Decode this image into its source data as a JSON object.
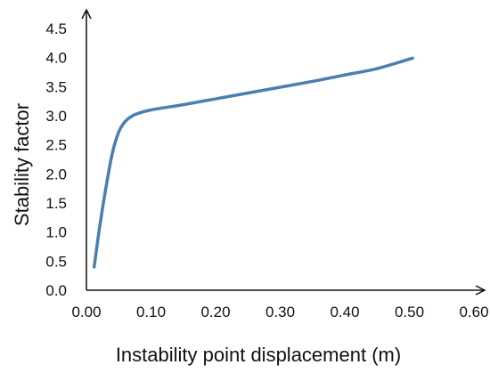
{
  "chart_data": {
    "type": "line",
    "title": "",
    "xlabel": "Instability point displacement (m)",
    "ylabel": "Stability factor",
    "xlim": [
      0,
      0.6
    ],
    "ylim": [
      0,
      4.5
    ],
    "x_ticks": [
      "0.00",
      "0.10",
      "0.20",
      "0.30",
      "0.40",
      "0.50",
      "0.60"
    ],
    "y_ticks": [
      "0.0",
      "0.5",
      "1.0",
      "1.5",
      "2.0",
      "2.5",
      "3.0",
      "3.5",
      "4.0",
      "4.5"
    ],
    "grid": false,
    "legend": "none",
    "series": [
      {
        "color": "#4a7fb0",
        "x": [
          0.012,
          0.02,
          0.03,
          0.04,
          0.05,
          0.06,
          0.07,
          0.08,
          0.1,
          0.15,
          0.2,
          0.25,
          0.3,
          0.35,
          0.4,
          0.45,
          0.505
        ],
        "y": [
          0.4,
          1.05,
          1.75,
          2.35,
          2.72,
          2.9,
          2.99,
          3.04,
          3.1,
          3.19,
          3.29,
          3.39,
          3.49,
          3.59,
          3.7,
          3.81,
          3.99
        ]
      }
    ]
  }
}
